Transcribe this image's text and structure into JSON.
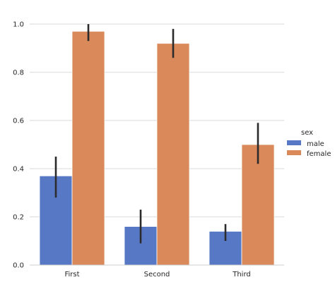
{
  "chart_data": {
    "type": "bar",
    "categories": [
      "First",
      "Second",
      "Third"
    ],
    "series": [
      {
        "name": "male",
        "color": "#5778c4",
        "values": [
          0.37,
          0.16,
          0.14
        ],
        "ci_low": [
          0.28,
          0.09,
          0.1
        ],
        "ci_high": [
          0.45,
          0.23,
          0.17
        ]
      },
      {
        "name": "female",
        "color": "#d9895a",
        "values": [
          0.97,
          0.92,
          0.5
        ],
        "ci_low": [
          0.93,
          0.86,
          0.42
        ],
        "ci_high": [
          1.0,
          0.98,
          0.59
        ]
      }
    ],
    "ylim": [
      0,
      1.0
    ],
    "yticks": [
      "0.0",
      "0.2",
      "0.4",
      "0.6",
      "0.8",
      "1.0"
    ],
    "xlabel": "",
    "ylabel": "",
    "grid": true,
    "legend": {
      "title": "sex",
      "placement": "right"
    },
    "colors": {
      "grid": "#d9d9d9",
      "axis": "#cccccc",
      "errorbar": "#2b2b2b"
    }
  }
}
